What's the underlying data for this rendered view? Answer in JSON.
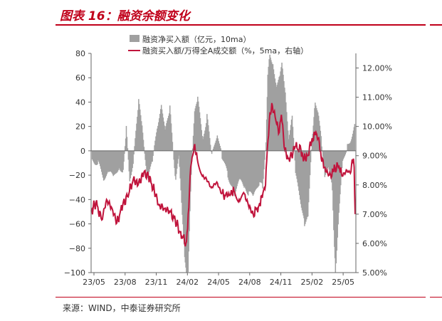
{
  "figure": {
    "title": "图表 16：融资余额变化",
    "source": "来源：WIND，中泰证券研究所"
  },
  "colors": {
    "accent": "#c0001a",
    "bar": "#a0a0a0",
    "line": "#c0143c",
    "axis": "#666666"
  },
  "chart_data": {
    "type": "bar+line",
    "x_tick_labels": [
      "23/05",
      "23/08",
      "23/11",
      "24/02",
      "24/05",
      "24/08",
      "24/11",
      "25/02",
      "25/05"
    ],
    "x_range": [
      "2023-05-01",
      "2025-06-10"
    ],
    "y_left": {
      "range": [
        -100,
        80
      ],
      "ticks": [
        80,
        60,
        40,
        20,
        0,
        -20,
        -40,
        -60,
        -80,
        -100
      ]
    },
    "y_right": {
      "range": [
        5.0,
        12.5
      ],
      "ticks": [
        "12.00%",
        "11.00%",
        "10.00%",
        "9.00%",
        "8.00%",
        "7.00%",
        "6.00%",
        "5.00%"
      ]
    },
    "legend_position": "top",
    "series": [
      {
        "name": "融资净买入额（亿元，10ma）",
        "type": "bar",
        "axis": "left",
        "points": [
          [
            "2023-05-03",
            -8
          ],
          [
            "2023-05-20",
            -10
          ],
          [
            "2023-06-05",
            -22
          ],
          [
            "2023-06-20",
            -18
          ],
          [
            "2023-07-05",
            -22
          ],
          [
            "2023-07-20",
            -12
          ],
          [
            "2023-08-01",
            -18
          ],
          [
            "2023-08-10",
            18
          ],
          [
            "2023-08-20",
            -25
          ],
          [
            "2023-09-01",
            -5
          ],
          [
            "2023-09-15",
            40
          ],
          [
            "2023-09-25",
            20
          ],
          [
            "2023-10-10",
            -20
          ],
          [
            "2023-10-25",
            -10
          ],
          [
            "2023-11-10",
            22
          ],
          [
            "2023-11-20",
            40
          ],
          [
            "2023-12-01",
            15
          ],
          [
            "2023-12-15",
            35
          ],
          [
            "2024-01-01",
            -25
          ],
          [
            "2024-01-10",
            -5
          ],
          [
            "2024-01-20",
            -55
          ],
          [
            "2024-01-27",
            -85
          ],
          [
            "2024-02-01",
            -100
          ],
          [
            "2024-02-06",
            -100
          ],
          [
            "2024-02-15",
            -20
          ],
          [
            "2024-02-25",
            30
          ],
          [
            "2024-03-05",
            42
          ],
          [
            "2024-03-20",
            10
          ],
          [
            "2024-04-01",
            28
          ],
          [
            "2024-04-15",
            -5
          ],
          [
            "2024-05-01",
            15
          ],
          [
            "2024-05-15",
            -5
          ],
          [
            "2024-06-01",
            -20
          ],
          [
            "2024-06-20",
            -35
          ],
          [
            "2024-07-05",
            -25
          ],
          [
            "2024-07-20",
            -30
          ],
          [
            "2024-08-01",
            -35
          ],
          [
            "2024-08-15",
            -38
          ],
          [
            "2024-09-01",
            -25
          ],
          [
            "2024-09-10",
            -30
          ],
          [
            "2024-09-20",
            5
          ],
          [
            "2024-09-25",
            60
          ],
          [
            "2024-10-01",
            80
          ],
          [
            "2024-10-10",
            72
          ],
          [
            "2024-10-20",
            55
          ],
          [
            "2024-10-30",
            62
          ],
          [
            "2024-11-05",
            70
          ],
          [
            "2024-11-15",
            48
          ],
          [
            "2024-11-25",
            12
          ],
          [
            "2024-12-05",
            30
          ],
          [
            "2024-12-15",
            -20
          ],
          [
            "2025-01-01",
            -45
          ],
          [
            "2025-01-10",
            -60
          ],
          [
            "2025-01-20",
            -55
          ],
          [
            "2025-02-01",
            10
          ],
          [
            "2025-02-10",
            42
          ],
          [
            "2025-02-20",
            30
          ],
          [
            "2025-03-01",
            5
          ],
          [
            "2025-03-10",
            -20
          ],
          [
            "2025-03-20",
            -15
          ],
          [
            "2025-04-01",
            -30
          ],
          [
            "2025-04-07",
            -80
          ],
          [
            "2025-04-10",
            -100
          ],
          [
            "2025-04-20",
            -50
          ],
          [
            "2025-05-01",
            -10
          ],
          [
            "2025-05-15",
            5
          ],
          [
            "2025-05-25",
            10
          ],
          [
            "2025-06-05",
            22
          ]
        ]
      },
      {
        "name": "融资买入额/万得全A成交额（%，5ma，右轴）",
        "type": "line",
        "axis": "right",
        "points": [
          [
            "2023-05-01",
            7.1
          ],
          [
            "2023-05-15",
            7.4
          ],
          [
            "2023-06-01",
            6.8
          ],
          [
            "2023-06-15",
            7.5
          ],
          [
            "2023-07-01",
            7.2
          ],
          [
            "2023-07-15",
            6.7
          ],
          [
            "2023-08-01",
            7.3
          ],
          [
            "2023-08-15",
            7.6
          ],
          [
            "2023-09-01",
            8.2
          ],
          [
            "2023-09-15",
            8.0
          ],
          [
            "2023-10-01",
            8.4
          ],
          [
            "2023-10-15",
            8.3
          ],
          [
            "2023-11-01",
            7.8
          ],
          [
            "2023-11-15",
            7.3
          ],
          [
            "2023-12-01",
            7.2
          ],
          [
            "2023-12-15",
            7.1
          ],
          [
            "2024-01-01",
            6.8
          ],
          [
            "2024-01-15",
            6.4
          ],
          [
            "2024-02-01",
            6.0
          ],
          [
            "2024-02-06",
            6.5
          ],
          [
            "2024-02-15",
            8.6
          ],
          [
            "2024-02-25",
            9.3
          ],
          [
            "2024-03-05",
            8.9
          ],
          [
            "2024-03-20",
            8.3
          ],
          [
            "2024-04-01",
            8.2
          ],
          [
            "2024-04-15",
            7.9
          ],
          [
            "2024-05-01",
            8.1
          ],
          [
            "2024-05-15",
            7.7
          ],
          [
            "2024-06-01",
            7.6
          ],
          [
            "2024-06-20",
            7.8
          ],
          [
            "2024-07-05",
            7.5
          ],
          [
            "2024-07-20",
            7.7
          ],
          [
            "2024-08-01",
            7.3
          ],
          [
            "2024-08-15",
            7.0
          ],
          [
            "2024-09-01",
            7.3
          ],
          [
            "2024-09-20",
            8.0
          ],
          [
            "2024-09-25",
            9.2
          ],
          [
            "2024-10-01",
            10.2
          ],
          [
            "2024-10-10",
            10.7
          ],
          [
            "2024-10-20",
            10.2
          ],
          [
            "2024-10-30",
            9.8
          ],
          [
            "2024-11-05",
            10.4
          ],
          [
            "2024-11-15",
            9.2
          ],
          [
            "2024-11-25",
            8.9
          ],
          [
            "2024-12-05",
            9.0
          ],
          [
            "2024-12-15",
            9.3
          ],
          [
            "2025-01-01",
            9.2
          ],
          [
            "2025-01-10",
            8.9
          ],
          [
            "2025-01-20",
            9.0
          ],
          [
            "2025-02-01",
            9.5
          ],
          [
            "2025-02-10",
            9.8
          ],
          [
            "2025-02-20",
            9.6
          ],
          [
            "2025-03-01",
            8.9
          ],
          [
            "2025-03-10",
            8.6
          ],
          [
            "2025-03-20",
            8.4
          ],
          [
            "2025-04-01",
            8.3
          ],
          [
            "2025-04-10",
            8.6
          ],
          [
            "2025-04-20",
            8.6
          ],
          [
            "2025-05-01",
            8.3
          ],
          [
            "2025-05-15",
            8.5
          ],
          [
            "2025-05-25",
            8.4
          ],
          [
            "2025-06-01",
            8.8
          ],
          [
            "2025-06-05",
            8.6
          ],
          [
            "2025-06-08",
            7.0
          ]
        ]
      }
    ]
  }
}
